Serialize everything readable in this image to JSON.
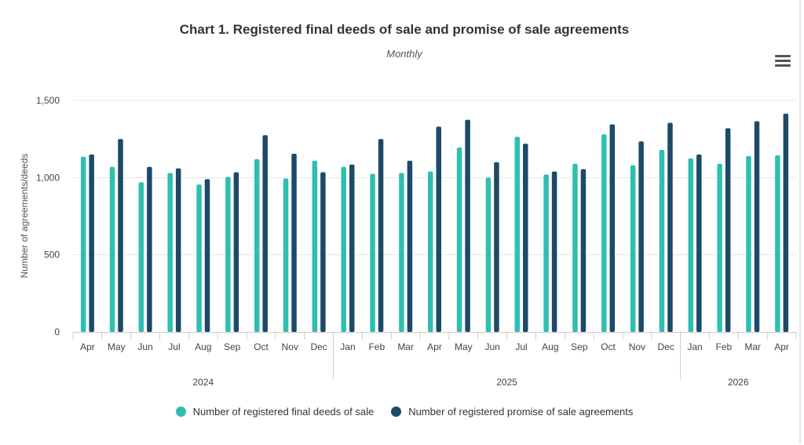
{
  "chart_data": {
    "type": "bar",
    "title": "Chart 1. Registered final deeds of sale and promise of sale agreements",
    "subtitle": "Monthly",
    "ylabel": "Number of agreements/deeds",
    "xlabel": "",
    "ylim": [
      0,
      1500
    ],
    "yticks": [
      "0",
      "500",
      "1,000",
      "1,500"
    ],
    "categories": [
      "Apr",
      "May",
      "Jun",
      "Jul",
      "Aug",
      "Sep",
      "Oct",
      "Nov",
      "Dec",
      "Jan",
      "Feb",
      "Mar",
      "Apr",
      "May",
      "Jun",
      "Jul",
      "Aug",
      "Sep",
      "Oct",
      "Nov",
      "Dec",
      "Jan",
      "Feb",
      "Mar",
      "Apr"
    ],
    "years": [
      {
        "label": "2024",
        "start": 0,
        "end": 8
      },
      {
        "label": "2025",
        "start": 9,
        "end": 20
      },
      {
        "label": "2026",
        "start": 21,
        "end": 24
      }
    ],
    "grid": true,
    "legend_position": "bottom-center",
    "series": [
      {
        "name": "Number of registered final deeds of sale",
        "color": "#2ebfb1",
        "values": [
          1135,
          1070,
          970,
          1030,
          955,
          1005,
          1120,
          995,
          1110,
          1070,
          1025,
          1030,
          1040,
          1195,
          1000,
          1265,
          1020,
          1090,
          1280,
          1080,
          1180,
          1125,
          1090,
          1140,
          1145
        ]
      },
      {
        "name": "Number of registered promise of sale agreements",
        "color": "#1c4a68",
        "values": [
          1150,
          1250,
          1070,
          1060,
          990,
          1035,
          1275,
          1155,
          1035,
          1085,
          1250,
          1110,
          1330,
          1375,
          1100,
          1220,
          1040,
          1055,
          1345,
          1235,
          1355,
          1150,
          1320,
          1365,
          1415
        ]
      }
    ]
  },
  "ui": {
    "menu_icon": "hamburger-menu-icon"
  }
}
